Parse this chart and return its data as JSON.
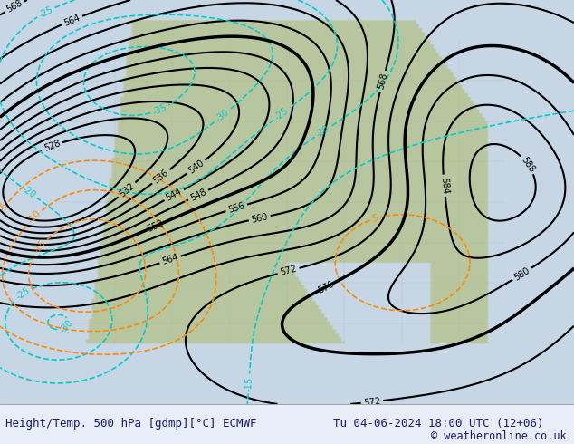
{
  "title_left": "Height/Temp. 500 hPa [gdmp][°C] ECMWF",
  "title_right": "Tu 04-06-2024 18:00 UTC (12+06)",
  "copyright": "© weatheronline.co.uk",
  "bg_color": "#d0d8e8",
  "map_bg_color": "#c8d4e4",
  "land_color": "#b8c8a0",
  "contour_black_color": "#000000",
  "contour_cyan_color": "#00cccc",
  "contour_orange_color": "#ff8800",
  "label_black": "#000000",
  "label_cyan": "#00cccc",
  "label_orange": "#ff8800",
  "label_gray": "#888888",
  "footer_bg": "#e8eef8",
  "footer_text_color": "#1a1a6e",
  "figsize": [
    6.34,
    4.9
  ],
  "dpi": 100
}
